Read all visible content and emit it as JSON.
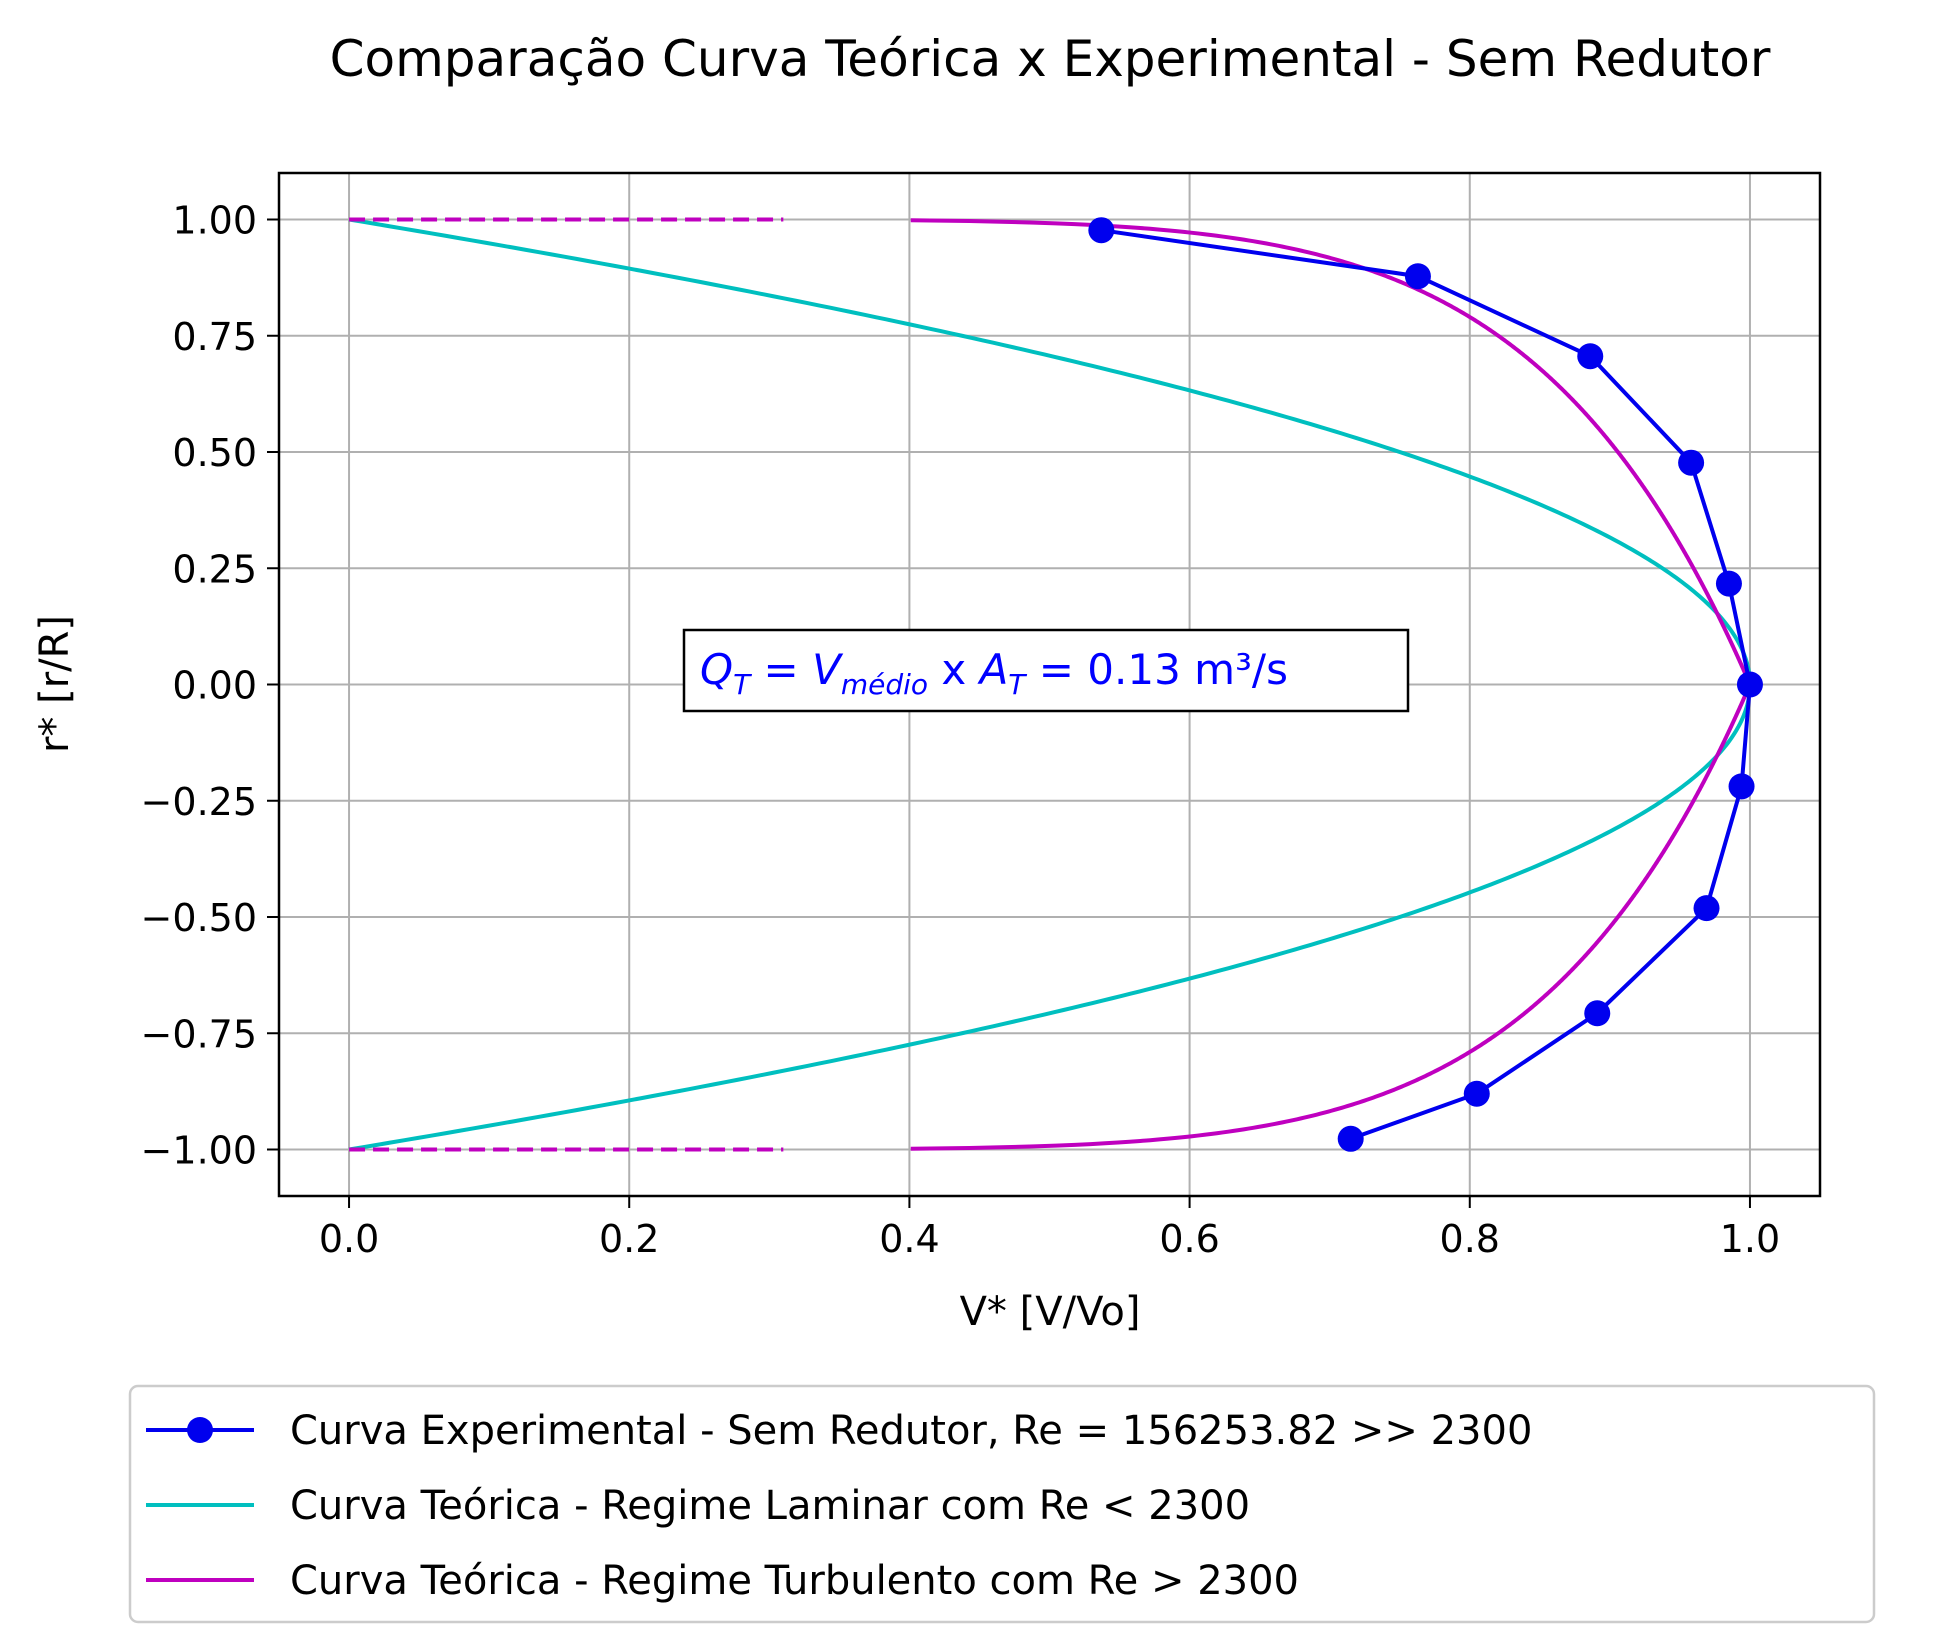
{
  "chart_data": {
    "type": "line",
    "title": "Comparação Curva Teórica x Experimental - Sem Redutor",
    "xlabel": "V* [V/Vo]",
    "ylabel": "r* [r/R]",
    "xlim": [
      -0.05,
      1.05
    ],
    "ylim": [
      -1.1,
      1.1
    ],
    "xticks": [
      0.0,
      0.2,
      0.4,
      0.6,
      0.8,
      1.0
    ],
    "xtick_labels": [
      "0.0",
      "0.2",
      "0.4",
      "0.6",
      "0.8",
      "1.0"
    ],
    "yticks": [
      1.0,
      0.75,
      0.5,
      0.25,
      0.0,
      -0.25,
      -0.5,
      -0.75,
      -1.0
    ],
    "ytick_labels": [
      "1.00",
      "0.75",
      "0.50",
      "0.25",
      "0.00",
      "−0.25",
      "−0.50",
      "−0.75",
      "−1.00"
    ],
    "grid": true,
    "legend_position": "below",
    "series": [
      {
        "name": "Curva Experimental - Sem Redutor, Re = 156253.82 >> 2300",
        "color": "#0000ee",
        "marker": "circle",
        "points": [
          [
            0.537,
            0.977
          ],
          [
            0.763,
            0.878
          ],
          [
            0.886,
            0.706
          ],
          [
            0.958,
            0.477
          ],
          [
            0.985,
            0.217
          ],
          [
            1.0,
            0.0
          ],
          [
            0.994,
            -0.219
          ],
          [
            0.969,
            -0.481
          ],
          [
            0.891,
            -0.707
          ],
          [
            0.805,
            -0.88
          ],
          [
            0.715,
            -0.977
          ]
        ]
      },
      {
        "name": "Curva Teórica - Regime Laminar com Re < 2300",
        "color": "#00bfbf",
        "function": "laminar"
      },
      {
        "name": "Curva Teórica - Regime Turbulento com Re > 2300",
        "color": "#bf00bf",
        "function": "turbulent",
        "dashed_to_zero": true
      }
    ],
    "annotation": {
      "q": "Q",
      "q_sub": "T",
      "eq": " = ",
      "v": "V",
      "v_sub": "médio",
      "x": " x ",
      "a": "A",
      "a_sub": "T",
      "eq2": " = 0.13 m³/s",
      "anchor": [
        0.25,
        0.0
      ],
      "color": "#0000ff"
    }
  }
}
